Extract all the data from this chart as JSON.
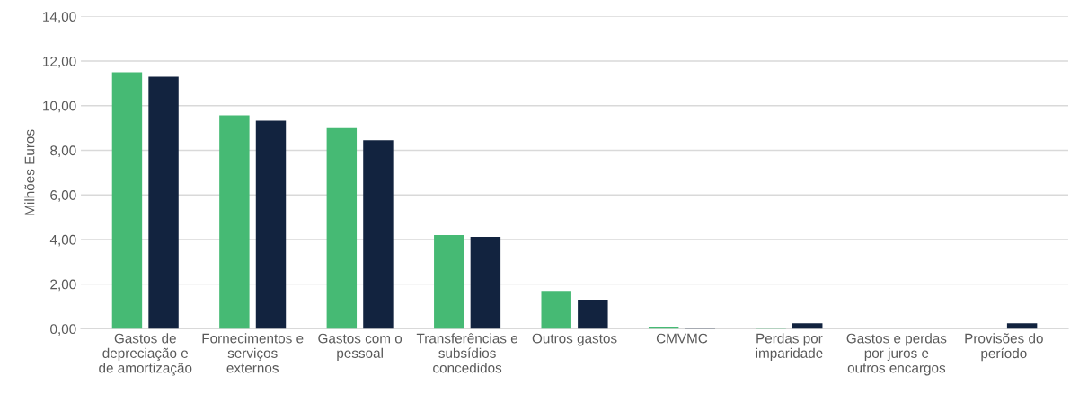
{
  "chart_data": {
    "type": "bar",
    "ylabel": "Milhões Euros",
    "categories": [
      "Gastos de\ndepreciação e\nde amortização",
      "Fornecimentos e\nserviços\nexternos",
      "Gastos com o\npessoal",
      "Transferências e\nsubsídios\nconcedidos",
      "Outros gastos",
      "CMVMC",
      "Perdas por\nimparidade",
      "Gastos e perdas\npor juros e\noutros encargos",
      "Provisões do\nperíodo"
    ],
    "series": [
      {
        "color": "#46ba74",
        "values": [
          11.5,
          9.57,
          9.0,
          4.2,
          1.7,
          0.1,
          0.05,
          0,
          0
        ]
      },
      {
        "color": "#12233f",
        "values": [
          11.3,
          9.33,
          8.45,
          4.12,
          1.3,
          0.05,
          0.25,
          0,
          0.25
        ]
      }
    ],
    "ylim": [
      0,
      14
    ],
    "yticks": [
      {
        "value": 0,
        "label": "0,00"
      },
      {
        "value": 2,
        "label": "2,00"
      },
      {
        "value": 4,
        "label": "4,00"
      },
      {
        "value": 6,
        "label": "6,00"
      },
      {
        "value": 8,
        "label": "8,00"
      },
      {
        "value": 10,
        "label": "10,00"
      },
      {
        "value": 12,
        "label": "12,00"
      },
      {
        "value": 14,
        "label": "14,00"
      }
    ],
    "grid": "y"
  }
}
